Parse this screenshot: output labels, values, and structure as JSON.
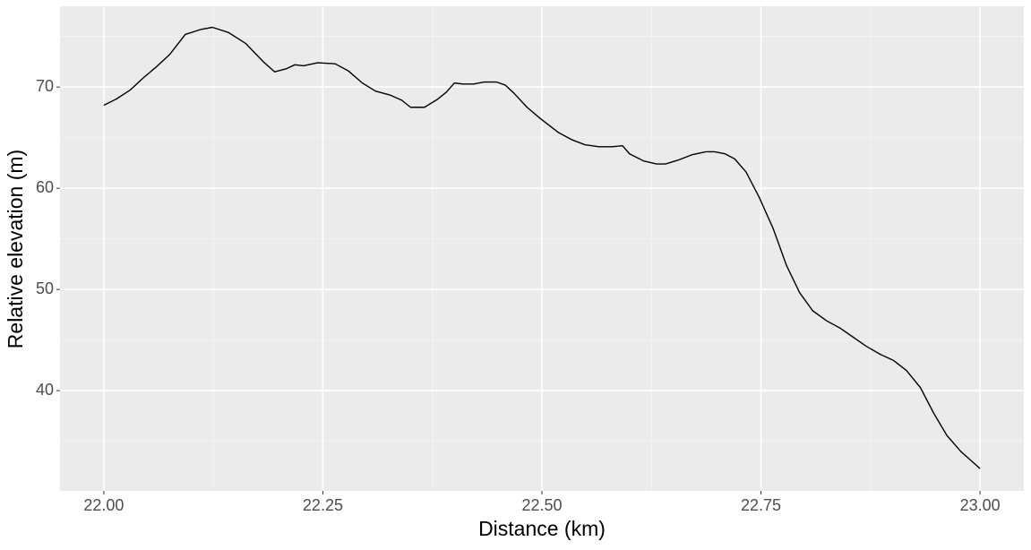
{
  "chart_data": {
    "type": "line",
    "x_label": "Distance (km)",
    "y_label": "Relative elevation (m)",
    "x": [
      22.0,
      22.014,
      22.03,
      22.045,
      22.06,
      22.075,
      22.093,
      22.111,
      22.124,
      22.142,
      22.162,
      22.182,
      22.195,
      22.208,
      22.218,
      22.228,
      22.244,
      22.264,
      22.279,
      22.295,
      22.31,
      22.327,
      22.34,
      22.35,
      22.366,
      22.381,
      22.391,
      22.4,
      22.41,
      22.422,
      22.434,
      22.448,
      22.458,
      22.468,
      22.483,
      22.498,
      22.519,
      22.534,
      22.549,
      22.565,
      22.58,
      22.592,
      22.6,
      22.616,
      22.631,
      22.641,
      22.656,
      22.671,
      22.687,
      22.697,
      22.709,
      22.72,
      22.733,
      22.748,
      22.764,
      22.779,
      22.794,
      22.809,
      22.825,
      22.84,
      22.855,
      22.87,
      22.886,
      22.901,
      22.916,
      22.932,
      22.947,
      22.962,
      22.978,
      23.0
    ],
    "values": [
      68.2,
      68.8,
      69.7,
      70.9,
      72.0,
      73.2,
      75.2,
      75.7,
      75.9,
      75.4,
      74.3,
      72.5,
      71.5,
      71.8,
      72.2,
      72.1,
      72.4,
      72.3,
      71.6,
      70.4,
      69.6,
      69.2,
      68.7,
      68.0,
      68.0,
      68.8,
      69.5,
      70.4,
      70.3,
      70.3,
      70.5,
      70.5,
      70.2,
      69.4,
      68.0,
      66.9,
      65.5,
      64.8,
      64.3,
      64.1,
      64.1,
      64.2,
      63.4,
      62.7,
      62.4,
      62.4,
      62.8,
      63.3,
      63.6,
      63.6,
      63.4,
      62.9,
      61.6,
      59.1,
      56.0,
      52.4,
      49.7,
      47.9,
      46.9,
      46.2,
      45.3,
      44.4,
      43.6,
      43.0,
      42.0,
      40.3,
      37.8,
      35.6,
      34.0,
      32.3
    ],
    "color": "#000000",
    "xlim": [
      21.95,
      23.05
    ],
    "ylim": [
      30.1,
      77.98
    ],
    "xticks": [
      {
        "value": 22.0,
        "label": "22.00"
      },
      {
        "value": 22.25,
        "label": "22.25"
      },
      {
        "value": 22.5,
        "label": "22.50"
      },
      {
        "value": 22.75,
        "label": "22.75"
      },
      {
        "value": 23.0,
        "label": "23.00"
      }
    ],
    "yticks": [
      40,
      50,
      60,
      70
    ],
    "x_minor_grid": [
      22.125,
      22.375,
      22.625,
      22.875
    ],
    "y_minor_grid": [
      35,
      45,
      55,
      65,
      75
    ],
    "grid": true
  }
}
